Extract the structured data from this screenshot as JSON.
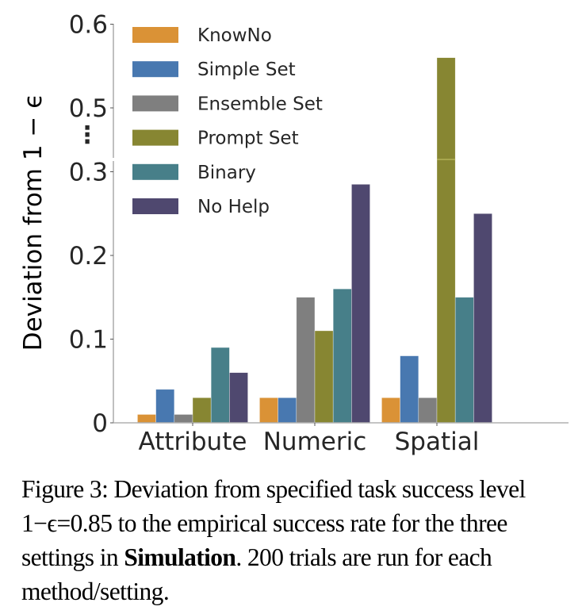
{
  "chart_data": {
    "type": "bar",
    "title": "",
    "xlabel": "",
    "ylabel": "Deviation from 1 − ϵ",
    "categories": [
      "Attribute",
      "Numeric",
      "Spatial"
    ],
    "series": [
      {
        "name": "KnowNo",
        "color": "#DA9236",
        "values": [
          0.01,
          0.03,
          0.03
        ]
      },
      {
        "name": "Simple Set",
        "color": "#4878B0",
        "values": [
          0.04,
          0.03,
          0.08
        ]
      },
      {
        "name": "Ensemble Set",
        "color": "#7F7F7F",
        "values": [
          0.01,
          0.15,
          0.03
        ]
      },
      {
        "name": "Prompt Set",
        "color": "#878632",
        "values": [
          0.03,
          0.11,
          0.56
        ]
      },
      {
        "name": "Binary",
        "color": "#477F89",
        "values": [
          0.09,
          0.16,
          0.15
        ]
      },
      {
        "name": "No Help",
        "color": "#4F486F",
        "values": [
          0.06,
          0.285,
          0.25
        ]
      }
    ],
    "y_axis": {
      "broken": true,
      "lower_range": [
        0,
        0.31
      ],
      "upper_range": [
        0.44,
        0.6
      ],
      "ticks": [
        0,
        0.1,
        0.2,
        0.3,
        0.5,
        0.6
      ],
      "tick_labels": [
        "0",
        "0.1",
        "0.2",
        "0.3",
        "0.5",
        "0.6"
      ],
      "break_marker": "⋮"
    },
    "grid": false,
    "legend_position": "top-left",
    "colors": {
      "axis": "#B0B0B0",
      "text": "#262626"
    }
  },
  "caption": {
    "prefix": "Figure 3: Deviation from specified task success level ",
    "math": "1−ϵ=0.85",
    "middle": " to the empirical success rate for the three settings in ",
    "bold": "Simulation",
    "suffix": ". 200 trials are run for each method/setting."
  }
}
